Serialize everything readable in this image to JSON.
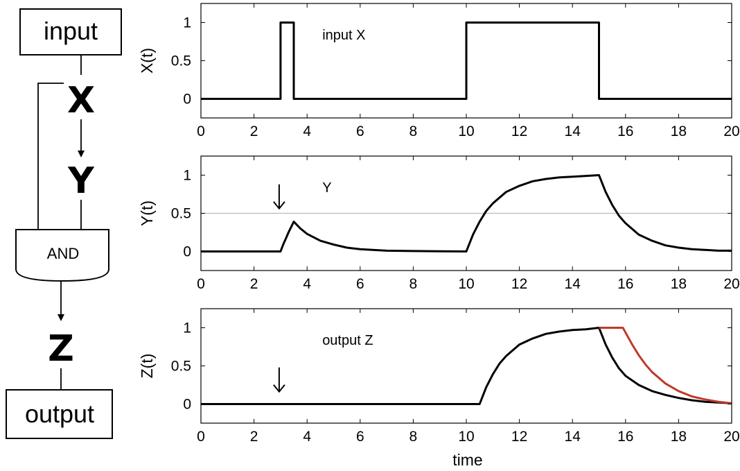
{
  "diagram": {
    "input_label": "input",
    "x_label": "X",
    "y_label": "Y",
    "gate_label": "AND",
    "z_label": "Z",
    "output_label": "output"
  },
  "chart_data": [
    {
      "type": "line",
      "ylabel": "X(t)",
      "xlim": [
        0,
        20
      ],
      "ylim": [
        -0.25,
        1.25
      ],
      "xticks": [
        0,
        2,
        4,
        6,
        8,
        10,
        12,
        14,
        16,
        18,
        20
      ],
      "yticks": [
        0,
        0.5,
        1
      ],
      "xticklabels": [
        "0",
        "2",
        "4",
        "6",
        "8",
        "10",
        "12",
        "14",
        "16",
        "18",
        "20"
      ],
      "yticklabels": [
        "0",
        "0.5",
        "1"
      ],
      "annotations": [
        {
          "text": "input X",
          "x": 4.0,
          "y": 0.93
        }
      ],
      "series": [
        {
          "color": "#000000",
          "x": [
            0,
            3.0,
            3.0,
            3.5,
            3.5,
            10,
            10,
            15,
            15,
            20
          ],
          "y": [
            0,
            0,
            1,
            1,
            0,
            0,
            1,
            1,
            0,
            0
          ]
        }
      ]
    },
    {
      "type": "line",
      "ylabel": "Y(t)",
      "xlim": [
        0,
        20
      ],
      "ylim": [
        -0.25,
        1.25
      ],
      "xticks": [
        0,
        2,
        4,
        6,
        8,
        10,
        12,
        14,
        16,
        18,
        20
      ],
      "yticks": [
        0,
        0.5,
        1
      ],
      "xticklabels": [
        "0",
        "2",
        "4",
        "6",
        "8",
        "10",
        "12",
        "14",
        "16",
        "18",
        "20"
      ],
      "yticklabels": [
        "0",
        "0.5",
        "1"
      ],
      "threshold": 0.5,
      "annotations": [
        {
          "text": "Y",
          "x": 4.0,
          "y": 0.93
        }
      ],
      "arrow_at_x": 3.0,
      "series": [
        {
          "color": "#000000",
          "x": [
            0,
            3.0,
            3.1,
            3.2,
            3.3,
            3.4,
            3.5,
            3.75,
            4.0,
            4.5,
            5.0,
            5.5,
            6.0,
            7.0,
            8.0,
            9.0,
            10.0,
            10.25,
            10.5,
            10.75,
            11.0,
            11.5,
            12.0,
            12.5,
            13.0,
            13.5,
            14.0,
            14.5,
            15.0,
            15.25,
            15.5,
            15.75,
            16.0,
            16.5,
            17.0,
            17.5,
            18.0,
            18.5,
            19.0,
            19.5,
            20.0
          ],
          "y": [
            0,
            0,
            0.09,
            0.17,
            0.25,
            0.32,
            0.39,
            0.3,
            0.23,
            0.14,
            0.09,
            0.05,
            0.03,
            0.01,
            0.005,
            0.002,
            0,
            0.22,
            0.39,
            0.53,
            0.63,
            0.78,
            0.86,
            0.92,
            0.95,
            0.97,
            0.98,
            0.99,
            1.0,
            0.78,
            0.61,
            0.47,
            0.37,
            0.22,
            0.14,
            0.08,
            0.05,
            0.03,
            0.02,
            0.01,
            0.01
          ]
        }
      ]
    },
    {
      "type": "line",
      "ylabel": "Z(t)",
      "xlabel": "time",
      "xlim": [
        0,
        20
      ],
      "ylim": [
        -0.25,
        1.25
      ],
      "xticks": [
        0,
        2,
        4,
        6,
        8,
        10,
        12,
        14,
        16,
        18,
        20
      ],
      "yticks": [
        0,
        0.5,
        1
      ],
      "xticklabels": [
        "0",
        "2",
        "4",
        "6",
        "8",
        "10",
        "12",
        "14",
        "16",
        "18",
        "20"
      ],
      "yticklabels": [
        "0",
        "0.5",
        "1"
      ],
      "annotations": [
        {
          "text": "output Z",
          "x": 4.0,
          "y": 0.93
        }
      ],
      "arrow_at_x": 3.0,
      "series": [
        {
          "color": "#000000",
          "x": [
            0,
            10.5,
            10.75,
            11.0,
            11.25,
            11.5,
            12.0,
            12.5,
            13.0,
            13.5,
            14.0,
            14.5,
            15.0,
            15.25,
            15.5,
            15.75,
            16.0,
            16.5,
            17.0,
            17.5,
            18.0,
            18.5,
            19.0,
            19.5,
            20.0
          ],
          "y": [
            0,
            0,
            0.22,
            0.39,
            0.53,
            0.63,
            0.78,
            0.86,
            0.92,
            0.95,
            0.97,
            0.98,
            1.0,
            0.78,
            0.61,
            0.47,
            0.37,
            0.25,
            0.17,
            0.12,
            0.08,
            0.05,
            0.03,
            0.02,
            0.01
          ]
        },
        {
          "color": "#c0392b",
          "x": [
            15.0,
            15.9,
            16.25,
            16.5,
            16.75,
            17.0,
            17.5,
            18.0,
            18.5,
            19.0,
            19.5,
            20.0
          ],
          "y": [
            1.0,
            1.0,
            0.78,
            0.64,
            0.52,
            0.42,
            0.27,
            0.17,
            0.1,
            0.06,
            0.03,
            0.01
          ]
        }
      ]
    }
  ]
}
